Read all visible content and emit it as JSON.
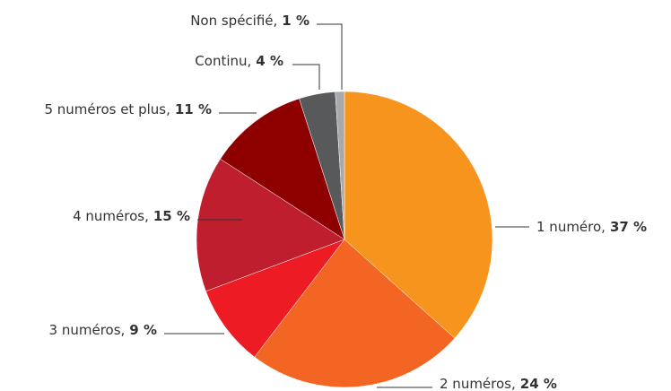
{
  "chart_data": {
    "type": "pie",
    "categories": [
      "1 numéro,",
      "2 numéros,",
      "3 numéros,",
      "4 numéros,",
      "5 numéros et plus,",
      "Continu,",
      "Non spécifié,"
    ],
    "values": [
      37,
      24,
      9,
      15,
      11,
      4,
      1
    ],
    "value_labels": [
      "37 %",
      "24 %",
      "9 %",
      "15 %",
      "11 %",
      "4 %",
      "1 %"
    ],
    "colors": [
      "#f7941d",
      "#f26522",
      "#ed1c24",
      "#be1e2d",
      "#8e0000",
      "#58595b",
      "#a7a9ac"
    ]
  }
}
